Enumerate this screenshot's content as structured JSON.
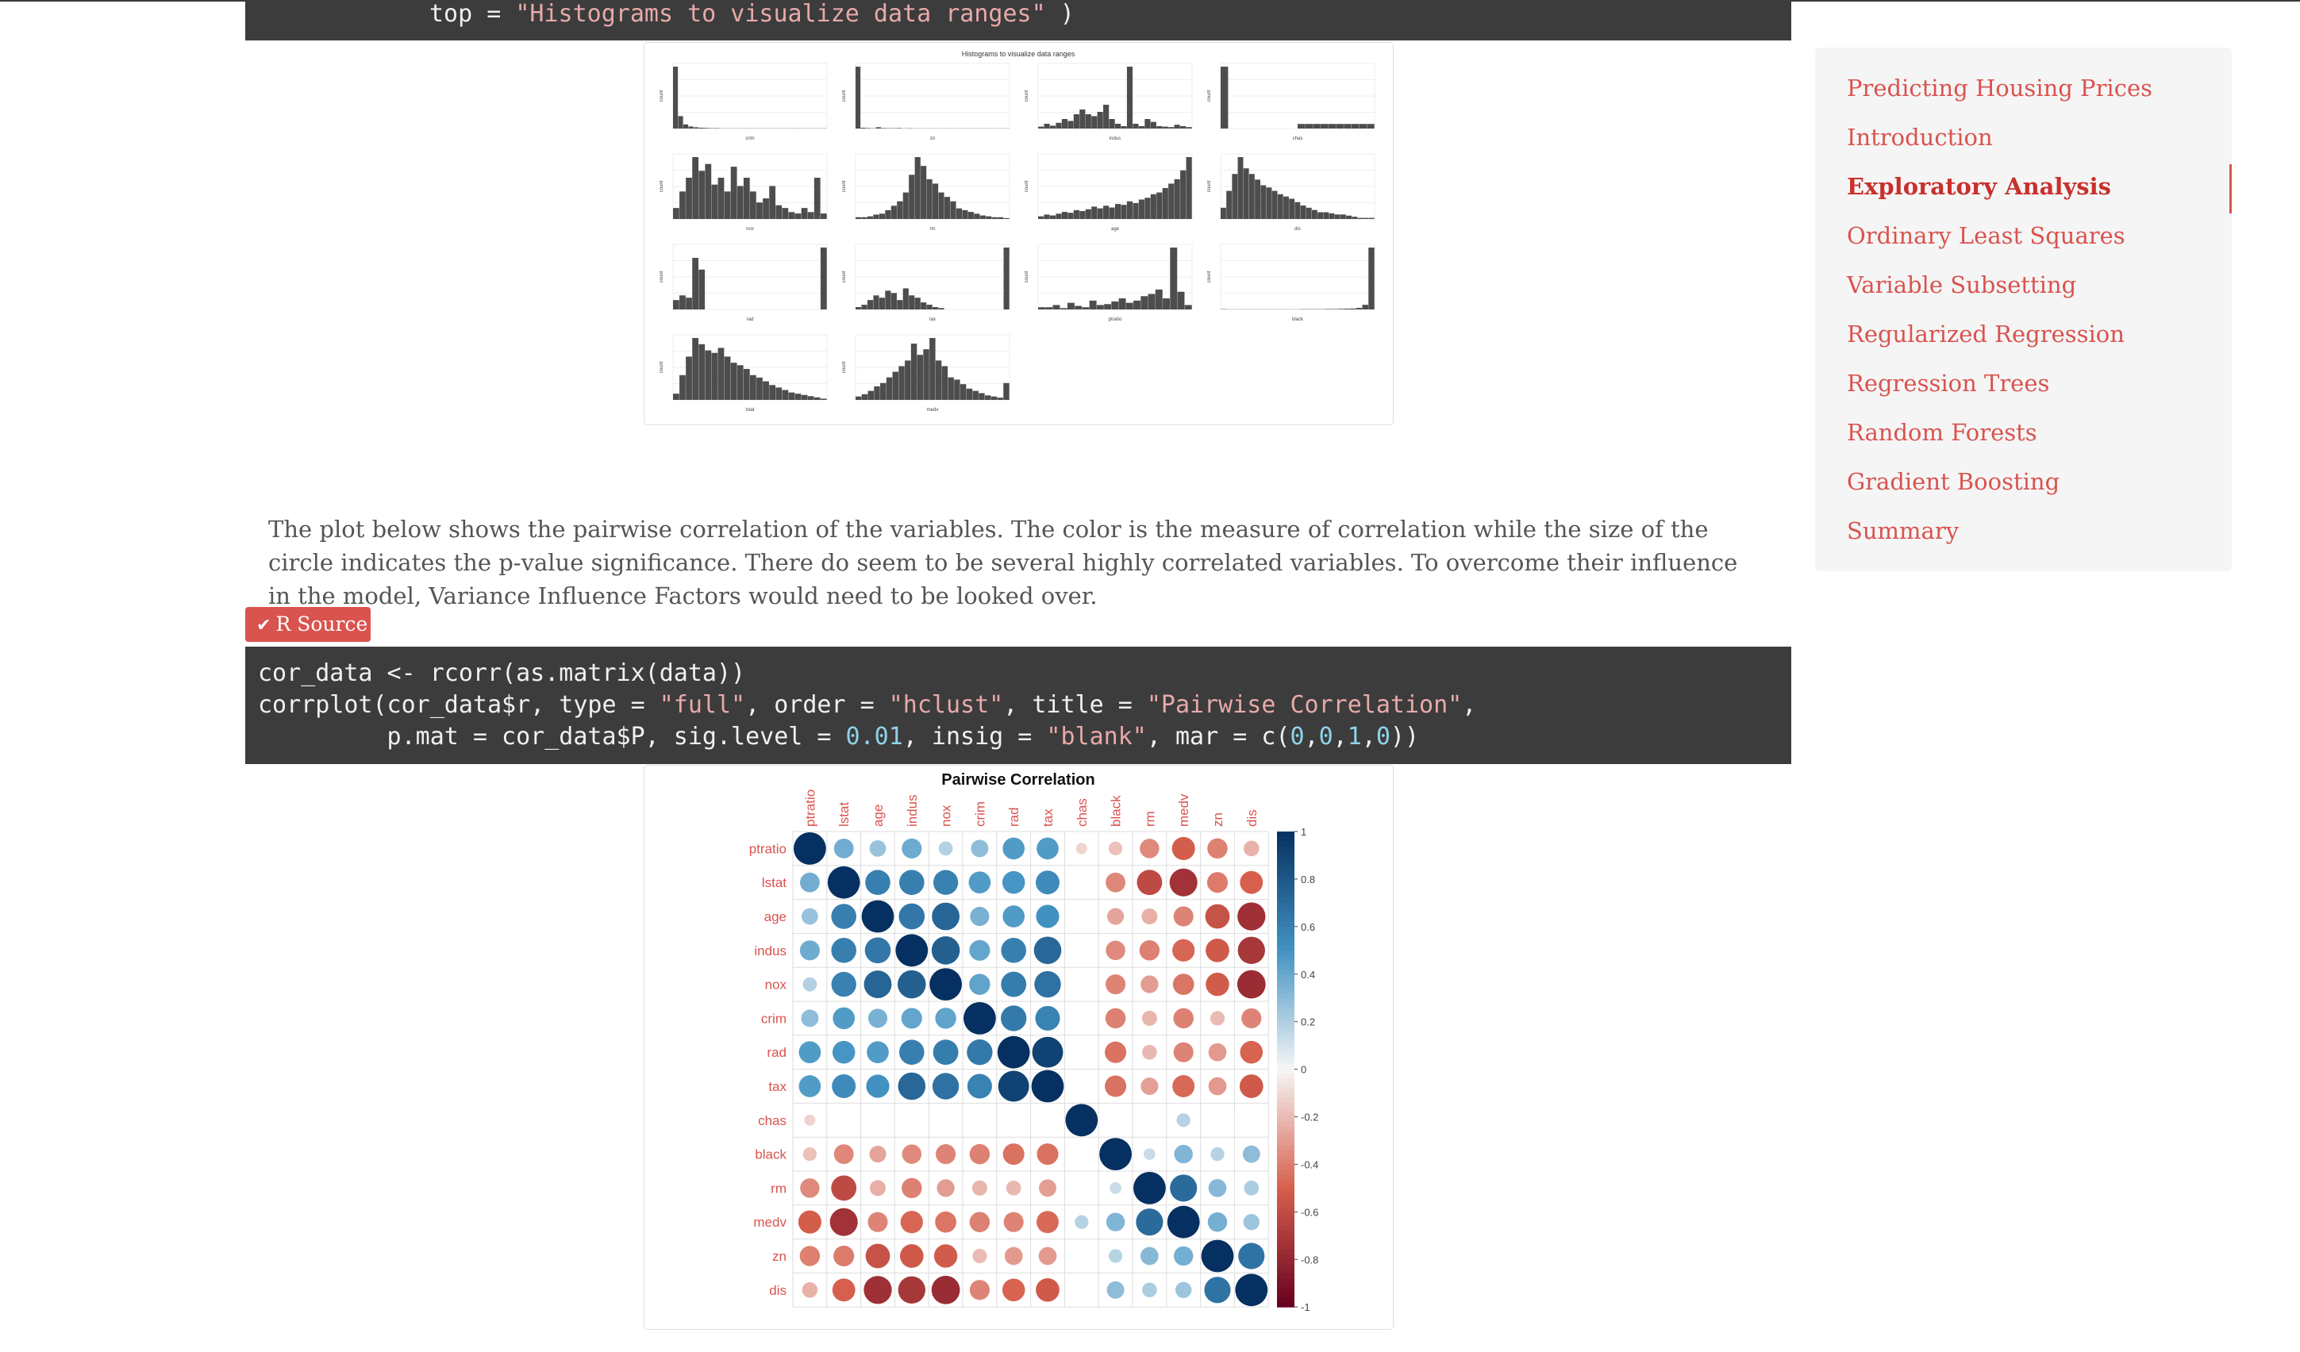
{
  "code_top": {
    "line_prefix": "top = ",
    "line_string": "\"Histograms to visualize data ranges\"",
    "line_suffix": " )"
  },
  "paragraph": "The plot below shows the pairwise correlation of the variables. The color is the measure of correlation while the size of the circle indicates the p-value significance. There do seem to be several highly correlated variables. To overcome their influence in the model, Variance Influence Factors would need to be looked over.",
  "toggle_button": {
    "icon": "chevron-down-icon",
    "label": "R Source"
  },
  "code_main": {
    "line1": "cor_data <- rcorr(as.matrix(data))",
    "line2_a": "corrplot(cor_data$r, type = ",
    "line2_b": "\"full\"",
    "line2_c": ", order = ",
    "line2_d": "\"hclust\"",
    "line2_e": ", title = ",
    "line2_f": "\"Pairwise Correlation\"",
    "line2_g": ",",
    "line3_a": "         p.mat = cor_data$P, sig.level = ",
    "line3_b": "0.01",
    "line3_c": ", insig = ",
    "line3_d": "\"blank\"",
    "line3_e": ", mar = c(",
    "line3_f": "0",
    "line3_g": ",",
    "line3_h": "0",
    "line3_i": ",",
    "line3_j": "1",
    "line3_k": ",",
    "line3_l": "0",
    "line3_m": "))"
  },
  "sidebar": {
    "items": [
      {
        "label": "Predicting Housing Prices",
        "active": false
      },
      {
        "label": "Introduction",
        "active": false
      },
      {
        "label": "Exploratory Analysis",
        "active": true
      },
      {
        "label": "Ordinary Least Squares",
        "active": false
      },
      {
        "label": "Variable Subsetting",
        "active": false
      },
      {
        "label": "Regularized Regression",
        "active": false
      },
      {
        "label": "Regression Trees",
        "active": false
      },
      {
        "label": "Random Forests",
        "active": false
      },
      {
        "label": "Gradient Boosting",
        "active": false
      },
      {
        "label": "Summary",
        "active": false
      }
    ]
  },
  "colors": {
    "accent": "#d9534f",
    "code_bg": "#3c3c3c",
    "string": "#e8a9a9",
    "number": "#8fd3e8",
    "bar": "#4d4d4d"
  },
  "chart_data": [
    {
      "type": "bar",
      "title": "Histograms to visualize data ranges",
      "ylabel": "count",
      "panels": [
        {
          "xlabel": "crim",
          "values": [
            300,
            60,
            20,
            10,
            6,
            4,
            3,
            2,
            2,
            1,
            1,
            1,
            1,
            1,
            1,
            1,
            1,
            1,
            1,
            1,
            1,
            1,
            1,
            1,
            1,
            1,
            1,
            1,
            1,
            1
          ]
        },
        {
          "xlabel": "zn",
          "values": [
            380,
            5,
            3,
            2,
            8,
            3,
            2,
            2,
            3,
            1,
            2,
            1,
            1,
            1,
            1,
            1,
            1,
            1,
            1,
            1,
            1,
            1,
            1,
            1,
            1,
            1,
            1,
            1,
            1,
            1
          ]
        },
        {
          "xlabel": "indus",
          "values": [
            4,
            10,
            6,
            12,
            20,
            16,
            30,
            40,
            30,
            26,
            35,
            50,
            20,
            10,
            5,
            130,
            10,
            5,
            20,
            14,
            5,
            4,
            3,
            8,
            5,
            3
          ]
        },
        {
          "xlabel": "chas",
          "values": [
            471,
            0,
            0,
            0,
            0,
            0,
            0,
            0,
            0,
            0,
            35,
            35,
            35,
            35,
            35,
            35,
            35,
            35,
            35,
            35
          ]
        },
        {
          "xlabel": "nox",
          "values": [
            8,
            20,
            30,
            45,
            35,
            40,
            25,
            30,
            20,
            38,
            24,
            30,
            20,
            12,
            15,
            24,
            10,
            8,
            5,
            4,
            8,
            5,
            30,
            4
          ]
        },
        {
          "xlabel": "rm",
          "values": [
            2,
            2,
            3,
            5,
            6,
            10,
            15,
            20,
            30,
            50,
            70,
            60,
            45,
            40,
            30,
            25,
            20,
            12,
            10,
            8,
            6,
            4,
            3,
            2,
            2,
            1
          ]
        },
        {
          "xlabel": "age",
          "values": [
            3,
            5,
            4,
            6,
            8,
            7,
            10,
            9,
            11,
            14,
            12,
            15,
            13,
            17,
            16,
            20,
            18,
            22,
            24,
            28,
            30,
            35,
            40,
            45,
            55,
            70
          ]
        },
        {
          "xlabel": "dis",
          "values": [
            10,
            25,
            40,
            55,
            45,
            40,
            35,
            30,
            28,
            25,
            22,
            20,
            18,
            15,
            12,
            10,
            8,
            6,
            6,
            5,
            4,
            4,
            3,
            2,
            1,
            1,
            1
          ]
        },
        {
          "xlabel": "rad",
          "values": [
            20,
            30,
            25,
            110,
            85,
            0,
            0,
            0,
            0,
            0,
            0,
            0,
            0,
            0,
            0,
            0,
            0,
            0,
            0,
            0,
            0,
            0,
            0,
            132
          ]
        },
        {
          "xlabel": "tax",
          "values": [
            5,
            10,
            20,
            30,
            25,
            40,
            35,
            20,
            45,
            30,
            25,
            15,
            10,
            5,
            3,
            0,
            0,
            0,
            0,
            0,
            0,
            0,
            0,
            0,
            0,
            132
          ]
        },
        {
          "xlabel": "ptratio",
          "values": [
            5,
            5,
            10,
            3,
            15,
            8,
            5,
            20,
            10,
            12,
            18,
            25,
            15,
            20,
            30,
            35,
            45,
            25,
            140,
            40,
            10
          ]
        },
        {
          "xlabel": "black",
          "values": [
            2,
            1,
            1,
            1,
            1,
            1,
            1,
            1,
            1,
            1,
            1,
            1,
            1,
            2,
            2,
            2,
            2,
            3,
            3,
            4,
            5,
            6,
            10,
            30,
            400
          ]
        },
        {
          "xlabel": "lstat",
          "values": [
            5,
            20,
            35,
            50,
            45,
            40,
            38,
            42,
            35,
            30,
            28,
            25,
            20,
            18,
            15,
            12,
            10,
            8,
            6,
            5,
            4,
            3,
            2,
            1
          ]
        },
        {
          "xlabel": "medv",
          "values": [
            3,
            5,
            8,
            12,
            15,
            20,
            25,
            30,
            35,
            50,
            40,
            45,
            55,
            35,
            30,
            20,
            18,
            14,
            10,
            8,
            6,
            4,
            3,
            2,
            15
          ]
        }
      ]
    },
    {
      "type": "heatmap",
      "title": "Pairwise Correlation",
      "variables": [
        "ptratio",
        "lstat",
        "age",
        "indus",
        "nox",
        "crim",
        "rad",
        "tax",
        "chas",
        "black",
        "rm",
        "medv",
        "zn",
        "dis"
      ],
      "matrix": [
        [
          1.0,
          0.37,
          0.26,
          0.38,
          0.19,
          0.29,
          0.46,
          0.46,
          -0.12,
          -0.18,
          -0.36,
          -0.51,
          -0.39,
          -0.23
        ],
        [
          0.37,
          1.0,
          0.6,
          0.6,
          0.59,
          0.46,
          0.49,
          0.54,
          null,
          -0.37,
          -0.61,
          -0.74,
          -0.41,
          -0.5
        ],
        [
          0.26,
          0.6,
          1.0,
          0.64,
          0.73,
          0.35,
          0.46,
          0.51,
          null,
          -0.27,
          -0.24,
          -0.38,
          -0.57,
          -0.75
        ],
        [
          0.38,
          0.6,
          0.64,
          1.0,
          0.76,
          0.41,
          0.6,
          0.72,
          null,
          -0.36,
          -0.39,
          -0.48,
          -0.53,
          -0.71
        ],
        [
          0.19,
          0.59,
          0.73,
          0.76,
          1.0,
          0.42,
          0.61,
          0.67,
          null,
          -0.38,
          -0.3,
          -0.43,
          -0.52,
          -0.77
        ],
        [
          0.29,
          0.46,
          0.35,
          0.41,
          0.42,
          1.0,
          0.63,
          0.58,
          null,
          -0.39,
          -0.22,
          -0.39,
          -0.2,
          -0.38
        ],
        [
          0.46,
          0.49,
          0.46,
          0.6,
          0.61,
          0.63,
          1.0,
          0.91,
          null,
          -0.44,
          -0.21,
          -0.38,
          -0.31,
          -0.49
        ],
        [
          0.46,
          0.54,
          0.51,
          0.72,
          0.67,
          0.58,
          0.91,
          1.0,
          null,
          -0.44,
          -0.29,
          -0.47,
          -0.31,
          -0.53
        ],
        [
          -0.12,
          null,
          null,
          null,
          null,
          null,
          null,
          null,
          1.0,
          null,
          null,
          0.18,
          null,
          null
        ],
        [
          -0.18,
          -0.37,
          -0.27,
          -0.36,
          -0.38,
          -0.39,
          -0.44,
          -0.44,
          null,
          1.0,
          0.13,
          0.33,
          0.18,
          0.29
        ],
        [
          -0.36,
          -0.61,
          -0.24,
          -0.39,
          -0.3,
          -0.22,
          -0.21,
          -0.29,
          null,
          0.13,
          1.0,
          0.7,
          0.31,
          0.21
        ],
        [
          -0.51,
          -0.74,
          -0.38,
          -0.48,
          -0.43,
          -0.39,
          -0.38,
          -0.47,
          0.18,
          0.33,
          0.7,
          1.0,
          0.36,
          0.25
        ],
        [
          -0.39,
          -0.41,
          -0.57,
          -0.53,
          -0.52,
          -0.2,
          -0.31,
          -0.31,
          null,
          0.18,
          0.31,
          0.36,
          1.0,
          0.66
        ],
        [
          -0.23,
          -0.5,
          -0.75,
          -0.71,
          -0.77,
          -0.38,
          -0.49,
          -0.53,
          null,
          0.29,
          0.21,
          0.25,
          0.66,
          1.0
        ]
      ],
      "colorbar_ticks": [
        "1",
        "0.8",
        "0.6",
        "0.4",
        "0.2",
        "0",
        "-0.2",
        "-0.4",
        "-0.6",
        "-0.8",
        "-1"
      ],
      "range": [
        -1,
        1
      ]
    }
  ]
}
